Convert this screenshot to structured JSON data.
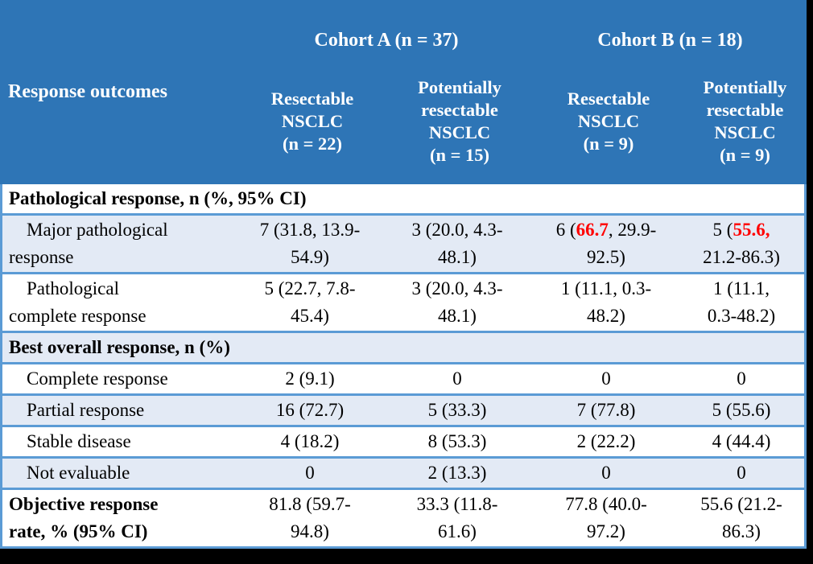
{
  "colors": {
    "header_bg": "#2E75B6",
    "band_bg": "#E3EAF5",
    "row_bg": "#FFFFFF",
    "border": "#5B9BD5",
    "header_text": "#FFFFFF",
    "body_text": "#000000",
    "highlight": "#FF0000",
    "frame_bg": "#000000"
  },
  "header": {
    "corner_label": "Response outcomes",
    "cohorts": [
      {
        "label": "Cohort A (n = 37)",
        "subcolumns": [
          "Resectable\nNSCLC\n(n = 22)",
          "Potentially\nresectable\nNSCLC\n(n = 15)"
        ]
      },
      {
        "label": "Cohort B (n = 18)",
        "subcolumns": [
          "Resectable\nNSCLC\n(n = 9)",
          "Potentially\nresectable\nNSCLC\n(n = 9)"
        ]
      }
    ]
  },
  "rows": [
    {
      "kind": "section",
      "label": "Pathological response, n (%, 95% CI)"
    },
    {
      "kind": "data",
      "label": "Major pathological\nresponse",
      "cells": [
        "7 (31.8, 13.9-\n54.9)",
        "3 (20.0, 4.3-\n48.1)",
        {
          "pre": "6 (",
          "red": "66.7",
          "post": ", 29.9-\n92.5)"
        },
        {
          "pre": "5 (",
          "red": "55.6,",
          "post": "\n21.2-86.3)"
        }
      ]
    },
    {
      "kind": "data",
      "label": "Pathological\ncomplete response",
      "cells": [
        "5 (22.7, 7.8-\n45.4)",
        "3 (20.0, 4.3-\n48.1)",
        "1 (11.1, 0.3-\n48.2)",
        "1 (11.1,\n0.3-48.2)"
      ]
    },
    {
      "kind": "section",
      "label": "Best overall response, n (%)"
    },
    {
      "kind": "data",
      "label": "Complete response",
      "cells": [
        "2 (9.1)",
        "0",
        "0",
        "0"
      ]
    },
    {
      "kind": "data",
      "label": "Partial response",
      "cells": [
        "16 (72.7)",
        "5 (33.3)",
        "7 (77.8)",
        "5 (55.6)"
      ]
    },
    {
      "kind": "data",
      "label": "Stable disease",
      "cells": [
        "4 (18.2)",
        "8 (53.3)",
        "2 (22.2)",
        "4 (44.4)"
      ]
    },
    {
      "kind": "data",
      "label": "Not evaluable",
      "cells": [
        "0",
        "2 (13.3)",
        "0",
        "0"
      ]
    },
    {
      "kind": "data",
      "label": "Objective response\nrate, % (95% CI)",
      "cells": [
        "81.8 (59.7-\n94.8)",
        "33.3 (11.8-\n61.6)",
        "77.8 (40.0-\n97.2)",
        "55.6 (21.2-\n86.3)"
      ]
    }
  ]
}
